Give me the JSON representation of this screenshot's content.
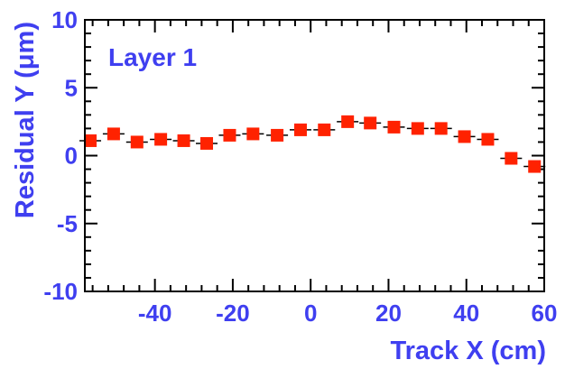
{
  "chart_data": {
    "type": "scatter",
    "title": "",
    "annotation": "Layer 1",
    "xlabel": "Track X (cm)",
    "ylabel": "Residual Y (μm)",
    "xlim": [
      -58,
      60
    ],
    "ylim": [
      -10,
      10
    ],
    "xticks": [
      -40,
      -20,
      0,
      20,
      40,
      60
    ],
    "yticks": [
      -10,
      -5,
      0,
      5,
      10
    ],
    "xtick_labels": [
      "-40",
      "-20",
      "0",
      "20",
      "40",
      "60"
    ],
    "ytick_labels": [
      "-10",
      "-5",
      "0",
      "5",
      "10"
    ],
    "grid": false,
    "series": [
      {
        "marker": "square",
        "x": [
          -56.6,
          -50.6,
          -44.6,
          -38.5,
          -32.6,
          -26.7,
          -20.8,
          -14.8,
          -8.6,
          -2.6,
          3.5,
          9.5,
          15.3,
          21.4,
          27.5,
          33.5,
          39.5,
          45.5,
          51.5,
          57.5
        ],
        "y": [
          1.1,
          1.6,
          1.0,
          1.2,
          1.1,
          0.9,
          1.5,
          1.6,
          1.5,
          1.9,
          1.9,
          2.5,
          2.4,
          2.1,
          2.0,
          2.0,
          1.4,
          1.2,
          -0.2,
          -0.8
        ],
        "yerr": [
          0.35,
          0.35,
          0.35,
          0.35,
          0.35,
          0.35,
          0.35,
          0.35,
          0.35,
          0.35,
          0.35,
          0.35,
          0.35,
          0.35,
          0.35,
          0.35,
          0.35,
          0.35,
          0.35,
          0.35
        ]
      }
    ]
  },
  "colors": {
    "text": "#3f3ff0",
    "marker": "#ff2200",
    "axis": "#000000"
  }
}
